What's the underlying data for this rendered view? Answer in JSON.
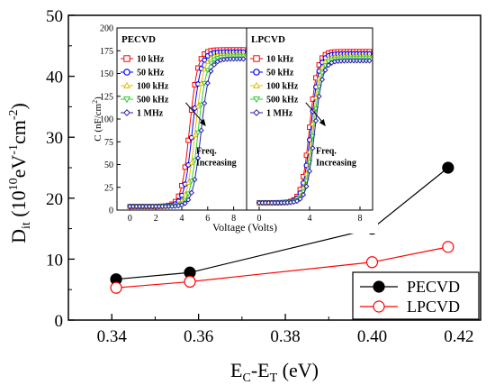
{
  "chart_data": [
    {
      "id": "main",
      "type": "line",
      "xlabel": {
        "main": "E",
        "sub1": "C",
        "mid": "-E",
        "sub2": "T",
        "tail": " (eV)"
      },
      "ylabel": {
        "main": "D",
        "sub": "it",
        "unit_open": " (10",
        "sup1": "10",
        "mid1": "eV",
        "sup2": "-1",
        "mid2": "cm",
        "sup3": "-2",
        "unit_close": ")"
      },
      "xlim": [
        0.33,
        0.425
      ],
      "ylim": [
        0,
        50
      ],
      "xticks": [
        {
          "value": 0.34,
          "label": "0.34"
        },
        {
          "value": 0.36,
          "label": "0.36"
        },
        {
          "value": 0.38,
          "label": "0.38"
        },
        {
          "value": 0.4,
          "label": "0.40"
        },
        {
          "value": 0.42,
          "label": "0.42"
        }
      ],
      "yticks": [
        {
          "value": 0,
          "label": "0"
        },
        {
          "value": 10,
          "label": "10"
        },
        {
          "value": 20,
          "label": "20"
        },
        {
          "value": 30,
          "label": "30"
        },
        {
          "value": 40,
          "label": "40"
        },
        {
          "value": 50,
          "label": "50"
        }
      ],
      "legend_position": "bottom-right",
      "series": [
        {
          "name": "PECVD",
          "color": "#000000",
          "marker": "filled-circle",
          "x": [
            0.341,
            0.358,
            0.4,
            0.4175
          ],
          "y": [
            6.7,
            7.8,
            15.0,
            25.0
          ]
        },
        {
          "name": "LPCVD",
          "color": "#ff0000",
          "marker": "open-circle",
          "x": [
            0.341,
            0.358,
            0.4,
            0.4175
          ],
          "y": [
            5.3,
            6.3,
            9.5,
            12.0
          ]
        }
      ]
    },
    {
      "id": "inset",
      "type": "line",
      "xlabel": "Voltage (Volts)",
      "ylabel": {
        "main": "C (nF/cm",
        "sup": "2",
        "tail": ")"
      },
      "ylim": [
        0,
        200
      ],
      "yticks": [
        {
          "value": 0,
          "label": "0"
        },
        {
          "value": 25,
          "label": "25"
        },
        {
          "value": 50,
          "label": "50"
        },
        {
          "value": 75,
          "label": "75"
        },
        {
          "value": 100,
          "label": "100"
        },
        {
          "value": 125,
          "label": "125"
        },
        {
          "value": 150,
          "label": "150"
        },
        {
          "value": 175,
          "label": "175"
        },
        {
          "value": 200,
          "label": "200"
        }
      ],
      "frequencies": [
        {
          "label": "10 kHz",
          "color": "#ff0000",
          "marker": "square"
        },
        {
          "label": "50 kHz",
          "color": "#0000ff",
          "marker": "circle"
        },
        {
          "label": "100 kHz",
          "color": "#e0c000",
          "marker": "triangle-up"
        },
        {
          "label": "500 kHz",
          "color": "#33cc33",
          "marker": "triangle-down"
        },
        {
          "label": "1 MHz",
          "color": "#2222aa",
          "marker": "diamond"
        }
      ],
      "panels": [
        {
          "title": "PECVD",
          "xlim": [
            -1,
            9
          ],
          "xticks": [
            {
              "value": 0,
              "label": "0"
            },
            {
              "value": 2,
              "label": "2"
            },
            {
              "value": 4,
              "label": "4"
            },
            {
              "value": 6,
              "label": "6"
            },
            {
              "value": 8,
              "label": "8"
            }
          ],
          "cmin": 4,
          "cmax": 176,
          "v0": 4.6,
          "shift": 0.22,
          "width": 0.32,
          "annotation": {
            "line1": "Freq.",
            "line2": "Increasing"
          }
        },
        {
          "title": "LPCVD",
          "xlim": [
            -1,
            9
          ],
          "xticks": [
            {
              "value": 0,
              "label": "0"
            },
            {
              "value": 4,
              "label": "4"
            },
            {
              "value": 8,
              "label": "8"
            }
          ],
          "cmin": 8,
          "cmax": 174,
          "v0": 4.0,
          "shift": 0.1,
          "width": 0.32,
          "annotation": {
            "line1": "Freq.",
            "line2": "Increasing"
          }
        }
      ]
    }
  ]
}
